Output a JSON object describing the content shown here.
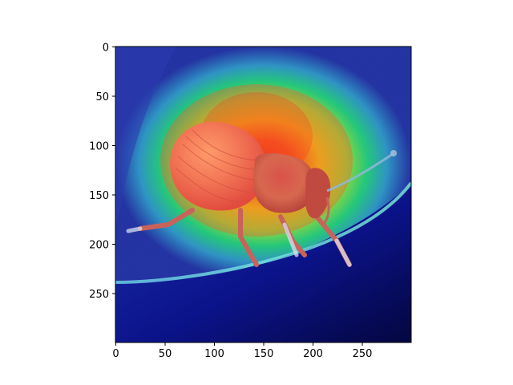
{
  "image_description": {
    "subject": "weevil (beetle) on a leaf",
    "overlay": "jet colormap heatmap (saliency / class activation map), red/orange centered on the beetle body"
  },
  "axes": {
    "x_ticks": [
      "0",
      "50",
      "100",
      "150",
      "200",
      "250"
    ],
    "y_ticks": [
      "0",
      "50",
      "100",
      "150",
      "200",
      "250"
    ],
    "x_range": [
      0,
      299
    ],
    "y_range": [
      0,
      299
    ],
    "y_inverted": true
  },
  "colors": {
    "heat_red": "#ff2a1a",
    "heat_yellow": "#e8e21a",
    "heat_green": "#25c77a",
    "heat_cyan": "#33a0c8",
    "heat_blue": "#1e2fa0",
    "heat_navy": "#060a4a",
    "leaf": "#c0e8f0",
    "beetle": "#cc5a45"
  }
}
